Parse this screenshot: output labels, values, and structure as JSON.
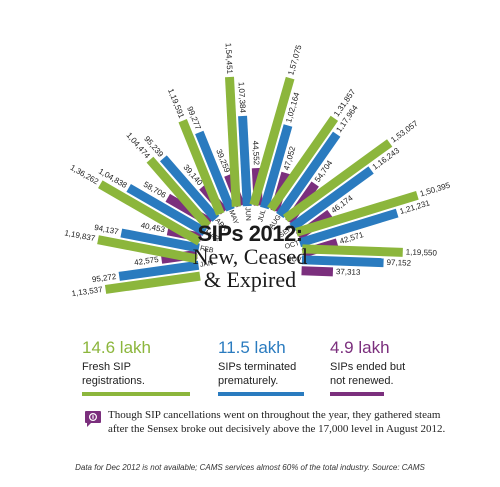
{
  "colors": {
    "fresh": "#8cb63c",
    "terminated": "#2a7bbf",
    "ended": "#7b2f7d",
    "accent": "#7b2f7d"
  },
  "title": {
    "line1": "SIPs 2012:",
    "line2": "New, Ceased",
    "line3": "& Expired"
  },
  "stats": [
    {
      "value": "14.6 lakh",
      "label_line1": "Fresh SIP",
      "label_line2": "registrations.",
      "series": "fresh"
    },
    {
      "value": "11.5 lakh",
      "label_line1": "SIPs terminated",
      "label_line2": "prematurely.",
      "series": "terminated"
    },
    {
      "value": "4.9 lakh",
      "label_line1": "SIPs ended but",
      "label_line2": "not renewed.",
      "series": "ended"
    }
  ],
  "note": "Though SIP cancellations went on throughout the year, they gathered steam after the Sensex broke out decisively above the 17,000 level in August 2012.",
  "source": "Data for Dec 2012 is not available; CAMS services almost 60% of the total industry. Source: CAMS",
  "chart_data": {
    "type": "bar",
    "layout": "radial",
    "categories": [
      "JAN",
      "FEB",
      "MAR",
      "APR",
      "MAY",
      "JUN",
      "JUL",
      "AUG",
      "SEP",
      "OCT",
      "NOV"
    ],
    "series": [
      {
        "key": "fresh",
        "values": [
          113537,
          119837,
          136262,
          104474,
          119591,
          154451,
          157075,
          131857,
          153057,
          150395,
          119550
        ],
        "labels": [
          "1,13,537",
          "1,19,837",
          "1,36,262",
          "1,04,474",
          "1,19,591",
          "1,54,451",
          "1,57,075",
          "1,31,857",
          "1,53,057",
          "1,50,395",
          "1,19,550"
        ]
      },
      {
        "key": "terminated",
        "values": [
          95272,
          94137,
          104838,
          95239,
          99277,
          107384,
          102164,
          117964,
          116243,
          121231,
          97152
        ],
        "labels": [
          "95,272",
          "94,137",
          "1,04,838",
          "95,239",
          "99,277",
          "1,07,384",
          "1,02,164",
          "1,17,964",
          "1,16,243",
          "1,21,231",
          "97,152"
        ]
      },
      {
        "key": "ended",
        "values": [
          42575,
          40453,
          58706,
          39140,
          39259,
          44552,
          47052,
          54704,
          46174,
          42571,
          37313
        ],
        "labels": [
          "42,575",
          "40,453",
          "58,706",
          "39,140",
          "39,259",
          "44,552",
          "47,052",
          "54,704",
          "46,174",
          "42,571",
          "37,313"
        ]
      }
    ]
  }
}
